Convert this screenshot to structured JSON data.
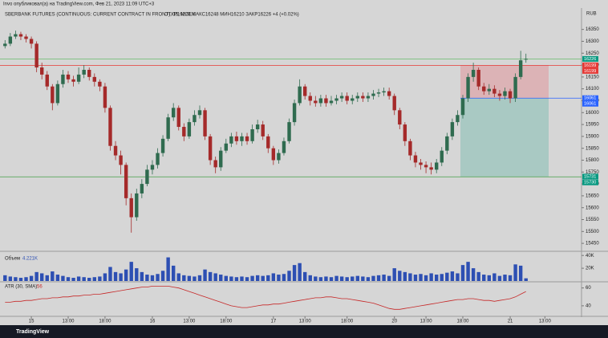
{
  "header": "Invo опубликовал(а) на TradingView.com, Фев 21, 2023 11:09 UTC+3",
  "footer": "TradingView",
  "currency": "RUB",
  "chart_data": [
    {
      "type": "candlestick",
      "title": "SBERBANK FUTURES (CONTINUOUS: CURRENT CONTRACT IN FRONT), 15, MOEX",
      "legend": "ОТКР16223  МАКС16248  МИН16210  ЗАКР16226  +4 (+0.02%)",
      "up_color": "#2f6b4f",
      "down_color": "#a52a2a",
      "open": [
        16280,
        16290,
        16320,
        16330,
        16320,
        16310,
        16290,
        16190,
        16160,
        16110,
        16040,
        16120,
        16160,
        16140,
        16130,
        16160,
        16180,
        16150,
        16130,
        16110,
        16020,
        15860,
        15820,
        15780,
        15640,
        15560,
        15660,
        15700,
        15760,
        15780,
        15830,
        15890,
        15980,
        16020,
        15940,
        15900,
        15960,
        15990,
        16010,
        15900,
        15800,
        15770,
        15840,
        15870,
        15900,
        15880,
        15900,
        15880,
        15930,
        15950,
        15900,
        15850,
        15800,
        15830,
        15880,
        15960,
        16040,
        16110,
        16070,
        16050,
        16040,
        16060,
        16040,
        16050,
        16060,
        16070,
        16050,
        16060,
        16070,
        16060,
        16070,
        16080,
        16085,
        16090,
        16070,
        16010,
        15950,
        15880,
        15820,
        15790,
        15780,
        15770,
        15760,
        15790,
        15840,
        15900,
        15960,
        15990,
        16060,
        16150,
        16180,
        16110,
        16090,
        16100,
        16080,
        16070,
        16090,
        16060,
        16150,
        16223
      ],
      "high": [
        16305,
        16335,
        16345,
        16340,
        16330,
        16320,
        16300,
        16210,
        16175,
        16120,
        16135,
        16180,
        16175,
        16155,
        16190,
        16200,
        16190,
        16165,
        16140,
        16125,
        16030,
        15880,
        15840,
        15790,
        15660,
        15680,
        15720,
        15780,
        15800,
        15850,
        15905,
        15995,
        16040,
        16030,
        15955,
        15975,
        16010,
        16030,
        16020,
        15910,
        15815,
        15855,
        15890,
        15915,
        15920,
        15915,
        15915,
        15950,
        15970,
        15965,
        15910,
        15860,
        15845,
        15895,
        15975,
        16055,
        16140,
        16120,
        16085,
        16070,
        16075,
        16075,
        16070,
        16075,
        16085,
        16085,
        16075,
        16085,
        16085,
        16085,
        16095,
        16100,
        16105,
        16105,
        16080,
        16020,
        15960,
        15890,
        15835,
        15805,
        15795,
        15790,
        15805,
        15855,
        15915,
        15975,
        16010,
        16075,
        16165,
        16210,
        16190,
        16125,
        16120,
        16115,
        16095,
        16105,
        16100,
        16165,
        16260,
        16248
      ],
      "low": [
        16270,
        16280,
        16310,
        16305,
        16295,
        16270,
        16170,
        16140,
        16095,
        16010,
        16030,
        16105,
        16125,
        16110,
        16120,
        16145,
        16135,
        16110,
        16090,
        16000,
        15840,
        15800,
        15740,
        15610,
        15495,
        15545,
        15640,
        15690,
        15740,
        15765,
        15815,
        15880,
        15965,
        15925,
        15880,
        15890,
        15945,
        15975,
        15885,
        15780,
        15745,
        15755,
        15830,
        15855,
        15865,
        15860,
        15865,
        15870,
        15915,
        15885,
        15830,
        15780,
        15785,
        15820,
        15870,
        15945,
        16030,
        16055,
        16030,
        16025,
        16025,
        16025,
        16030,
        16035,
        16045,
        16035,
        16035,
        16045,
        16045,
        16045,
        16055,
        16065,
        16070,
        16055,
        15990,
        15930,
        15860,
        15800,
        15770,
        15760,
        15745,
        15740,
        15745,
        15775,
        15825,
        15885,
        15945,
        15975,
        16045,
        16130,
        16095,
        16075,
        16075,
        16065,
        16050,
        16055,
        16040,
        16045,
        16140,
        16210
      ],
      "close": [
        16290,
        16320,
        16330,
        16320,
        16310,
        16290,
        16190,
        16160,
        16110,
        16040,
        16120,
        16160,
        16140,
        16130,
        16160,
        16180,
        16150,
        16130,
        16110,
        16020,
        15860,
        15820,
        15780,
        15640,
        15560,
        15660,
        15700,
        15760,
        15780,
        15830,
        15890,
        15980,
        16020,
        15940,
        15900,
        15960,
        15990,
        16010,
        15900,
        15800,
        15770,
        15840,
        15870,
        15900,
        15880,
        15900,
        15880,
        15930,
        15950,
        15900,
        15850,
        15800,
        15830,
        15880,
        15960,
        16040,
        16110,
        16070,
        16050,
        16040,
        16060,
        16040,
        16050,
        16060,
        16070,
        16050,
        16060,
        16070,
        16060,
        16070,
        16080,
        16085,
        16090,
        16070,
        16010,
        15950,
        15880,
        15820,
        15790,
        15780,
        15770,
        15760,
        15790,
        15840,
        15900,
        15960,
        15990,
        16060,
        16150,
        16180,
        16110,
        16090,
        16100,
        16080,
        16070,
        16090,
        16060,
        16150,
        16220,
        16226
      ],
      "xticks": [
        {
          "value": 5,
          "label": "15"
        },
        {
          "value": 12,
          "label": "13:00"
        },
        {
          "value": 19,
          "label": "18:00"
        },
        {
          "value": 28,
          "label": "16"
        },
        {
          "value": 35,
          "label": "13:00"
        },
        {
          "value": 42,
          "label": "18:00"
        },
        {
          "value": 51,
          "label": "17"
        },
        {
          "value": 57,
          "label": "13:00"
        },
        {
          "value": 65,
          "label": "18:00"
        },
        {
          "value": 74,
          "label": "20"
        },
        {
          "value": 80,
          "label": "13:00"
        },
        {
          "value": 87,
          "label": "18:00"
        },
        {
          "value": 96,
          "label": "21"
        },
        {
          "value": 102.6,
          "label": "13:00"
        }
      ],
      "ylim": [
        15420,
        16440
      ],
      "yticks": [
        15450,
        15500,
        15550,
        15600,
        15650,
        15700,
        15750,
        15800,
        15850,
        15900,
        15950,
        16000,
        16050,
        16100,
        16150,
        16200,
        16250,
        16300,
        16350
      ],
      "lines": [
        {
          "value": 16199,
          "color": "#e53935"
        },
        {
          "value": 15730,
          "color": "#43a047"
        },
        {
          "value": 16226,
          "color": "#66bb6a"
        }
      ],
      "position": {
        "entry": 16061,
        "stop": 16199,
        "target": 15731
      },
      "price_labels": [
        {
          "value": 16226,
          "color": "#089981"
        },
        {
          "value": 16199,
          "color": "#e53935"
        },
        {
          "value": 16199,
          "color": "#e53935"
        },
        {
          "value": 16061,
          "color": "#2962ff"
        },
        {
          "value": 16061,
          "color": "#2962ff"
        },
        {
          "value": 15731,
          "color": "#089981"
        },
        {
          "value": 15730,
          "color": "#089981"
        }
      ]
    },
    {
      "type": "bar",
      "title": "Объем",
      "value_label": "4.221K",
      "color": "#2d4fb3",
      "values": [
        9000,
        7000,
        6000,
        5000,
        6000,
        8000,
        14000,
        12000,
        9000,
        15000,
        10000,
        8000,
        6000,
        5000,
        7000,
        6000,
        5000,
        6000,
        7000,
        12000,
        22000,
        14000,
        12000,
        18000,
        30000,
        20000,
        14000,
        10000,
        9000,
        11000,
        16000,
        37000,
        24000,
        12000,
        9000,
        8000,
        7000,
        9000,
        18000,
        14000,
        12000,
        10000,
        8000,
        7000,
        6000,
        7000,
        6000,
        8000,
        9000,
        8000,
        9000,
        12000,
        10000,
        11000,
        16000,
        25000,
        28000,
        14000,
        9000,
        7000,
        6000,
        7000,
        6000,
        8000,
        7000,
        6000,
        7000,
        8000,
        7000,
        6000,
        8000,
        9000,
        10000,
        8000,
        20000,
        16000,
        14000,
        12000,
        10000,
        11000,
        9000,
        12000,
        10000,
        11000,
        13000,
        15000,
        12000,
        25000,
        30000,
        20000,
        14000,
        10000,
        9000,
        12000,
        8000,
        10000,
        9000,
        26000,
        24000,
        4221
      ],
      "ylim": [
        0,
        44000
      ],
      "yticks": [
        {
          "value": 20000,
          "label": "20K"
        },
        {
          "value": 40000,
          "label": "40K"
        }
      ]
    },
    {
      "type": "line",
      "title": "ATR (30, SMA)",
      "value_label": "56",
      "color": "#c62828",
      "values": [
        44,
        44,
        45,
        45,
        46,
        46,
        47,
        48,
        48,
        49,
        49,
        50,
        50,
        51,
        51,
        52,
        52,
        53,
        53,
        54,
        55,
        56,
        57,
        58,
        59,
        60,
        61,
        61,
        62,
        62,
        62,
        62,
        61,
        60,
        58,
        56,
        54,
        52,
        50,
        48,
        46,
        44,
        42,
        40,
        39,
        38,
        38,
        39,
        40,
        41,
        41,
        42,
        42,
        43,
        44,
        45,
        46,
        47,
        48,
        49,
        49,
        50,
        50,
        49,
        48,
        48,
        47,
        46,
        45,
        44,
        43,
        41,
        39,
        37,
        36,
        36,
        37,
        38,
        39,
        40,
        41,
        42,
        43,
        44,
        45,
        46,
        47,
        47,
        48,
        48,
        47,
        46,
        46,
        45,
        46,
        47,
        48,
        50,
        53,
        56
      ],
      "ylim": [
        30,
        66
      ],
      "yticks": [
        40,
        60
      ]
    }
  ]
}
